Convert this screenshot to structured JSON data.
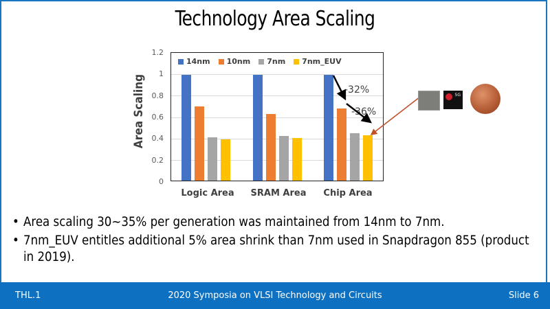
{
  "slide": {
    "title": "Technology Area Scaling",
    "bullets": [
      "Area scaling 30~35% per generation was maintained from 14nm to 7nm.",
      "7nm_EUV entitles additional 5% area shrink than 7nm used in Snapdragon 855 (product in 2019)."
    ],
    "footer": {
      "left": "THL.1",
      "center": "2020 Symposia on VLSI Technology and Circuits",
      "right": "Slide 6"
    },
    "bullet_glyph": "•",
    "images": [
      "die-photo",
      "qualcomm-snapdragon-5g-chip",
      "copper-coin"
    ]
  },
  "chart_data": {
    "type": "bar",
    "title": "",
    "xlabel": "",
    "ylabel": "Area Scaling",
    "ylim": [
      0,
      1.2
    ],
    "yticks": [
      "0",
      "0.2",
      "0.4",
      "0.6",
      "0.8",
      "1",
      "1.2"
    ],
    "grid": true,
    "legend_position": "top-inside",
    "categories": [
      "Logic Area",
      "SRAM Area",
      "Chip Area"
    ],
    "series": [
      {
        "name": "14nm",
        "color": "#4472c4",
        "values": [
          1.0,
          1.0,
          1.0
        ]
      },
      {
        "name": "10nm",
        "color": "#ed7d31",
        "values": [
          0.7,
          0.63,
          0.68
        ]
      },
      {
        "name": "7nm",
        "color": "#a5a5a5",
        "values": [
          0.41,
          0.42,
          0.45
        ]
      },
      {
        "name": "7nm_EUV",
        "color": "#ffc000",
        "values": [
          0.39,
          0.4,
          0.43
        ]
      }
    ],
    "annotations": [
      "-32%",
      "-36%"
    ]
  }
}
